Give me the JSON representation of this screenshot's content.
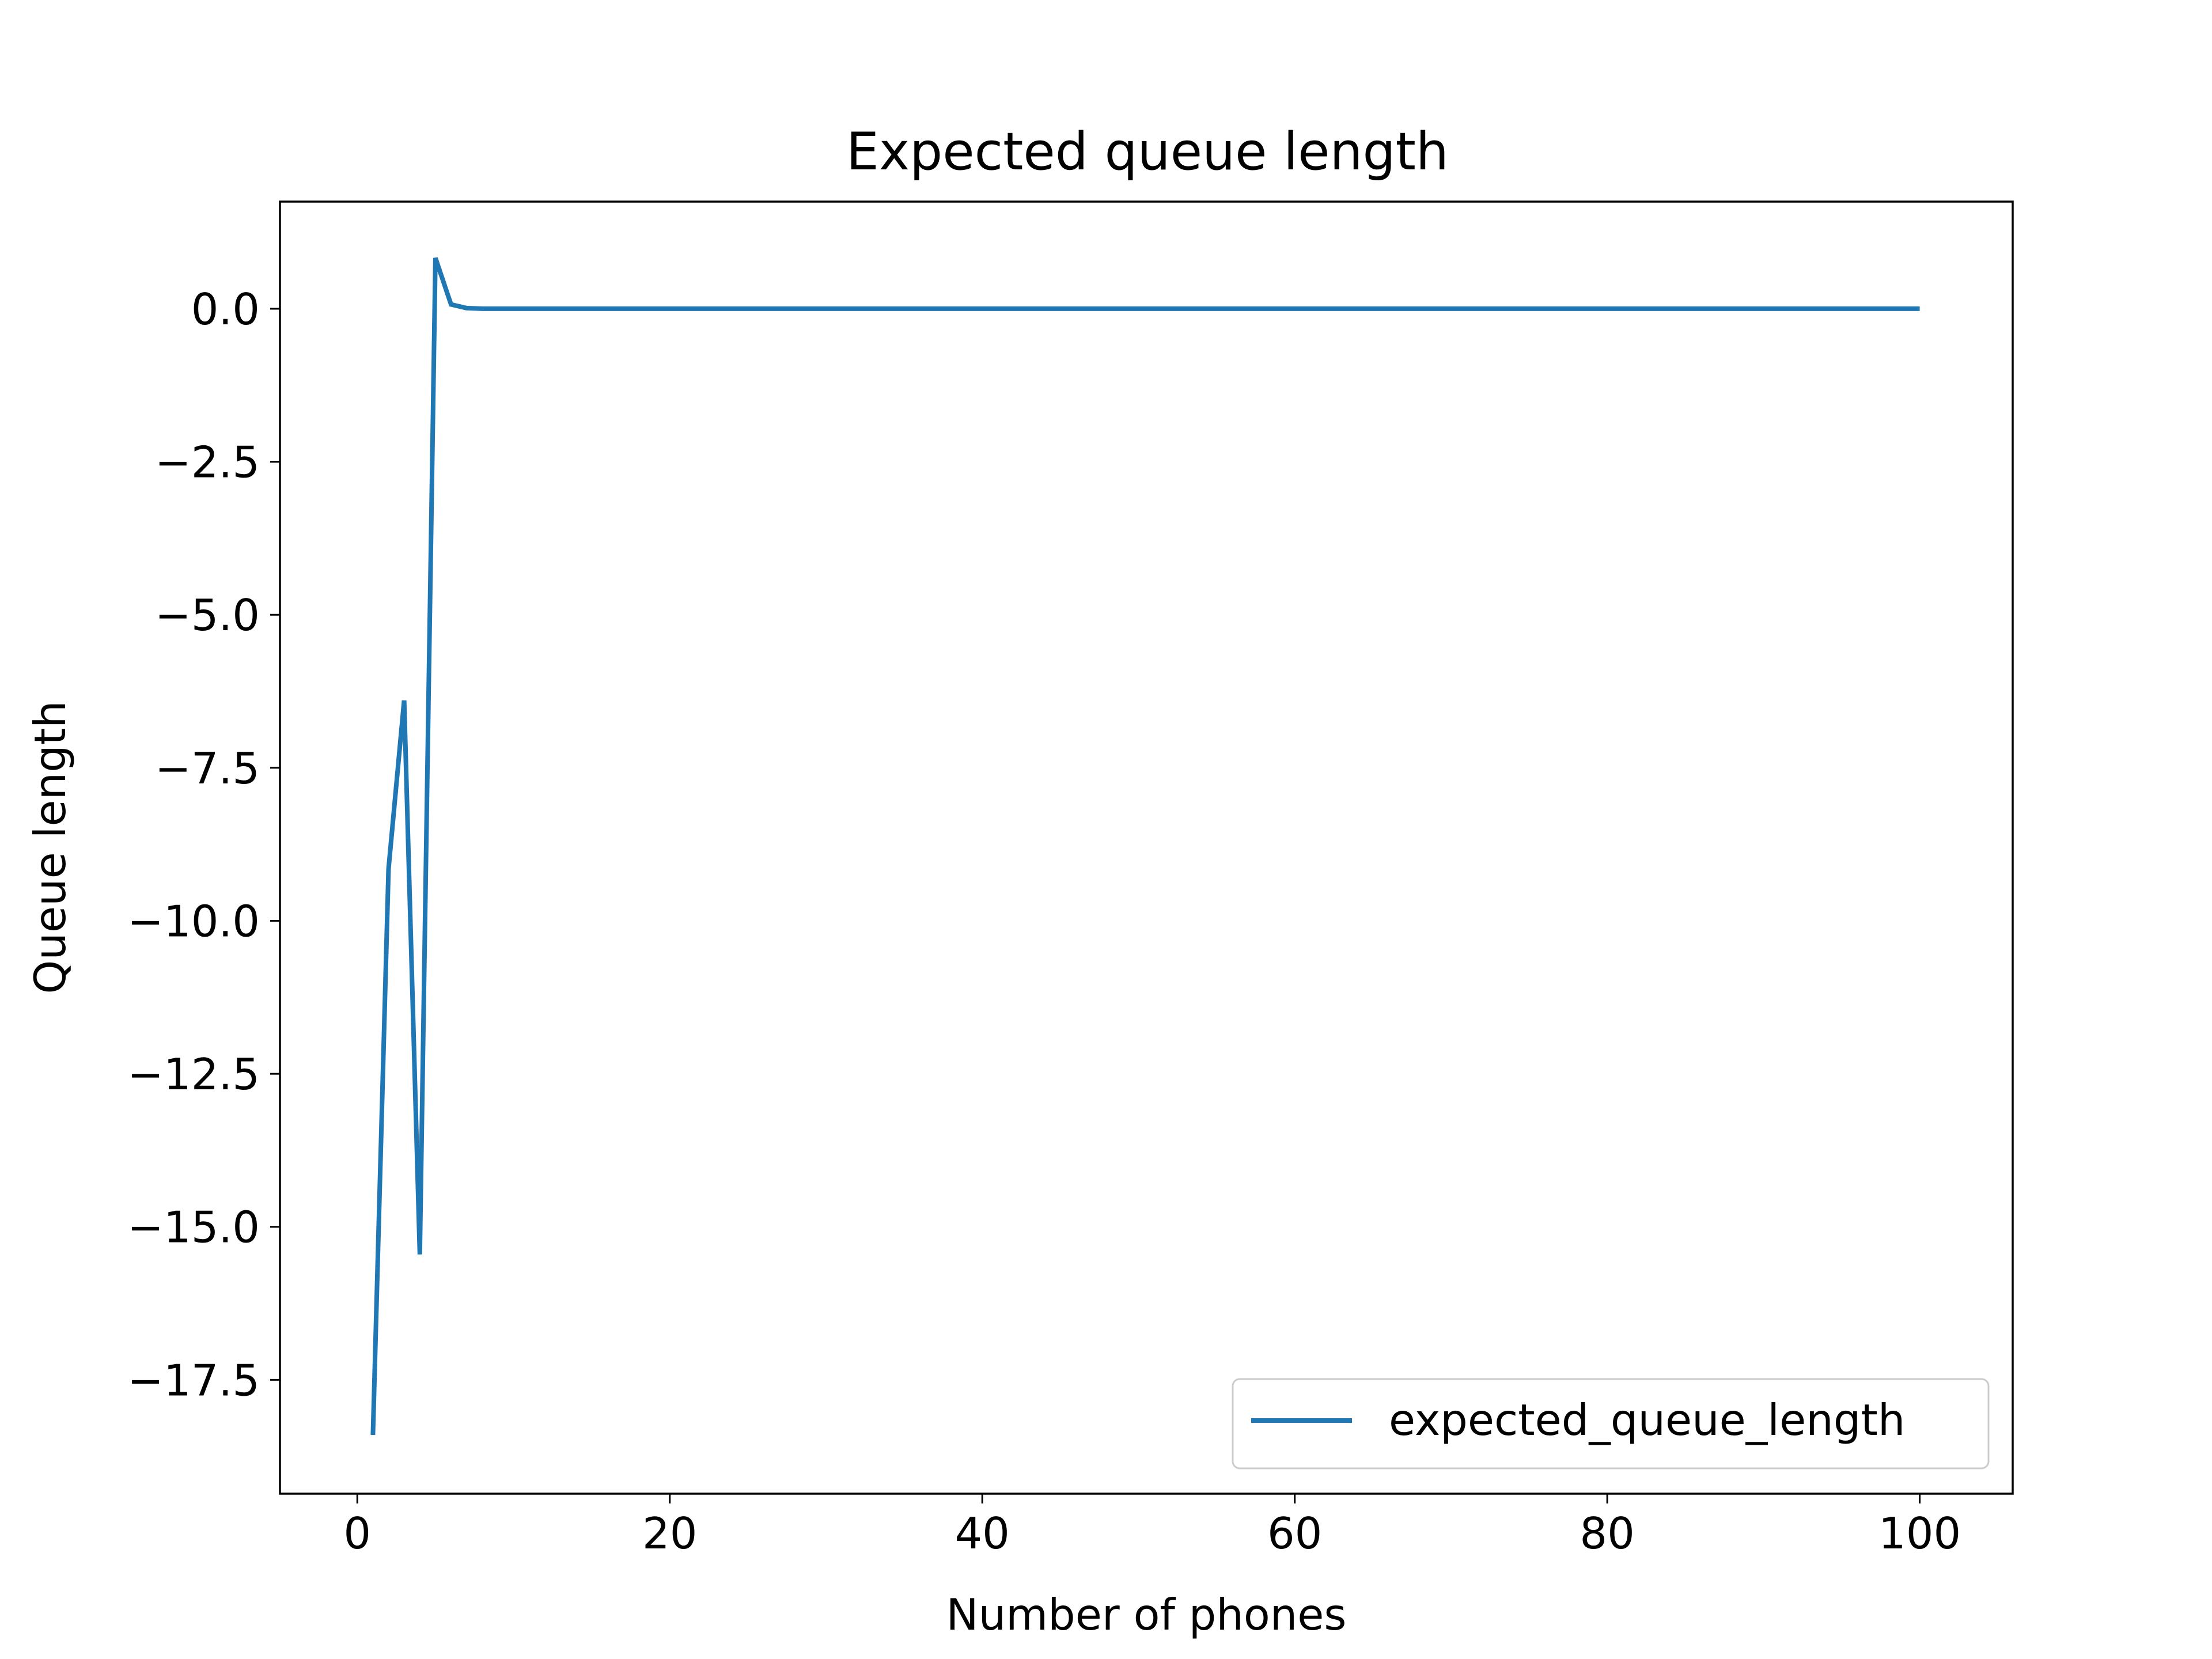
{
  "chart_data": {
    "type": "line",
    "title": "Expected queue length",
    "xlabel": "Number of phones",
    "ylabel": "Queue length",
    "xlim": [
      -4.95,
      105.95
    ],
    "ylim": [
      -19.36,
      1.75
    ],
    "x_ticks": [
      0,
      20,
      40,
      60,
      80,
      100
    ],
    "x_tick_labels": [
      "0",
      "20",
      "40",
      "60",
      "80",
      "100"
    ],
    "y_ticks": [
      0.0,
      -2.5,
      -5.0,
      -7.5,
      -10.0,
      -12.5,
      -15.0,
      -17.5
    ],
    "y_tick_labels": [
      "0.0",
      "−2.5",
      "−5.0",
      "−7.5",
      "−10.0",
      "−12.5",
      "−15.0",
      "−17.5"
    ],
    "grid": false,
    "legend_position": "lower-right",
    "series": [
      {
        "name": "expected_queue_length",
        "color": "#1f77b4",
        "x": [
          1,
          2,
          3,
          4,
          5,
          6,
          7,
          8,
          9,
          10,
          15,
          20,
          30,
          40,
          50,
          60,
          70,
          80,
          90,
          100
        ],
        "y": [
          -18.4,
          -9.15,
          -6.4,
          -15.45,
          0.83,
          0.07,
          0.01,
          0.0,
          0.0,
          0.0,
          0.0,
          0.0,
          0.0,
          0.0,
          0.0,
          0.0,
          0.0,
          0.0,
          0.0,
          0.0
        ]
      }
    ]
  }
}
